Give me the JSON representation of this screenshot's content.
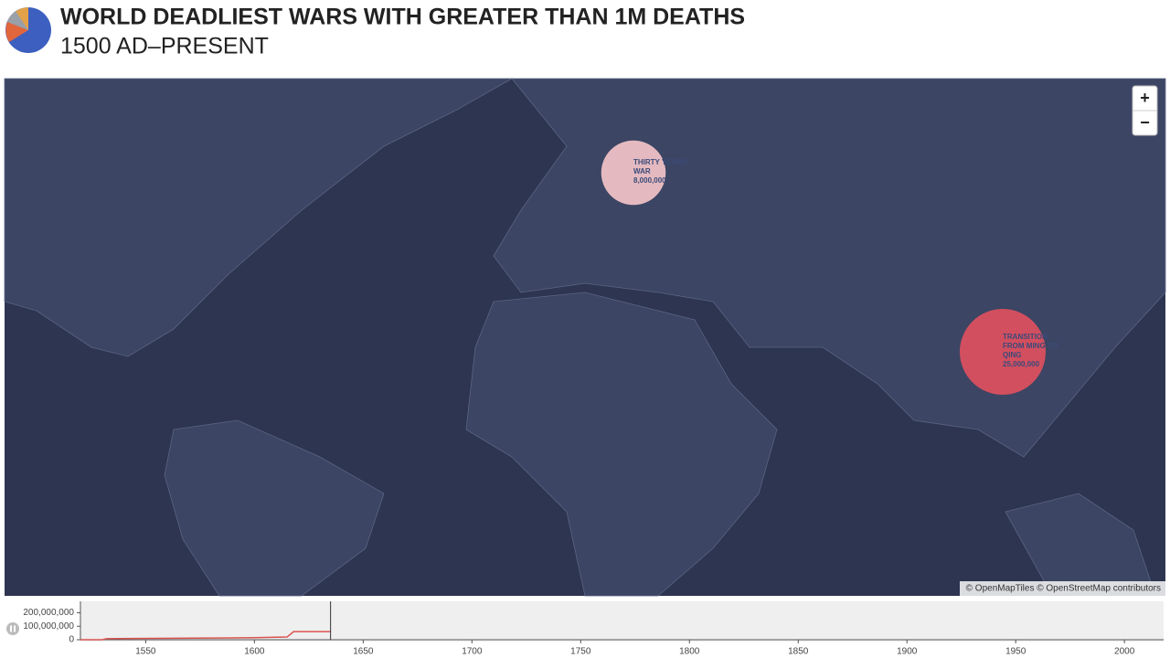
{
  "header": {
    "title": "WORLD DEADLIEST WARS WITH GREATER THAN 1M DEATHS",
    "subtitle": "1500 AD–PRESENT"
  },
  "map": {
    "zoom_in": "+",
    "zoom_out": "−",
    "attribution": "© OpenMapTiles © OpenStreetMap contributors",
    "bubbles": [
      {
        "name": "THIRTY YEARS' WAR",
        "value": 8000000,
        "value_label": "8,000,000"
      },
      {
        "name": "TRANSITION FROM MING TO QING",
        "value": 25000000,
        "value_label": "25,000,000"
      }
    ]
  },
  "chart_data": {
    "type": "line",
    "x": [
      1520,
      1530,
      1532,
      1600,
      1615,
      1618,
      1635
    ],
    "series": [
      {
        "color": "#d9534f",
        "values": [
          0,
          0,
          8000000,
          15000000,
          20000000,
          60000000,
          60000000
        ]
      }
    ],
    "cursor": 1635,
    "xlim": [
      1520,
      2018
    ],
    "xticks": [
      1550,
      1600,
      1650,
      1700,
      1750,
      1800,
      1850,
      1900,
      1950,
      2000
    ],
    "ylim": [
      0,
      285000000
    ],
    "yticks": [
      0,
      {
        "value": 100000000,
        "label": "100,000,000"
      },
      {
        "value": 200000000,
        "label": "200,000,000"
      }
    ]
  }
}
